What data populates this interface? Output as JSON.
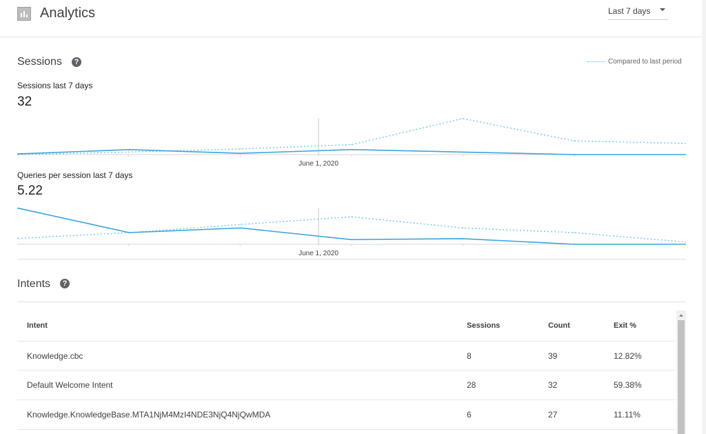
{
  "header": {
    "title": "Analytics",
    "period_label": "Last 7 days"
  },
  "sessions_section": {
    "title": "Sessions",
    "legend_label": "Compared to last period"
  },
  "chart_data": [
    {
      "type": "line",
      "title": "Sessions last 7 days",
      "value": "32",
      "x_marker_label": "June 1, 2020",
      "series": [
        {
          "values": [
            0.5,
            4,
            1,
            4,
            2,
            0,
            0
          ]
        },
        {
          "values": [
            0,
            2,
            4.5,
            8,
            29,
            11,
            9
          ]
        }
      ],
      "ylim": [
        0,
        30
      ]
    },
    {
      "type": "line",
      "title": "Queries per session last 7 days",
      "value": "5.22",
      "x_marker_label": "June 1, 2020",
      "series": [
        {
          "values": [
            15.5,
            5,
            7,
            2,
            2.4,
            0,
            0
          ]
        },
        {
          "values": [
            2.5,
            5,
            8.5,
            11.8,
            7,
            5,
            1
          ]
        }
      ],
      "ylim": [
        0,
        16
      ]
    }
  ],
  "intents": {
    "title": "Intents",
    "columns": [
      "Intent",
      "Sessions",
      "Count",
      "Exit %"
    ],
    "rows": [
      [
        "Knowledge.cbc",
        "8",
        "39",
        "12.82%"
      ],
      [
        "Default Welcome Intent",
        "28",
        "32",
        "59.38%"
      ],
      [
        "Knowledge.KnowledgeBase.MTA1NjM4MzI4NDE3NjQ4NjQwMDA",
        "6",
        "27",
        "11.11%"
      ]
    ]
  },
  "colors": {
    "line": "#3aa4dc",
    "compare_line": "#6cc6ee",
    "help_icon": "#5f6368"
  }
}
